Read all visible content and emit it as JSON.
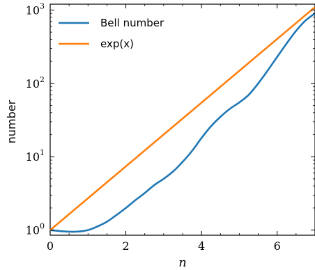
{
  "chart_data": {
    "type": "line",
    "xlabel": "n",
    "ylabel": "number",
    "xlim": [
      0,
      7
    ],
    "ylim_log10": [
      -0.07,
      3.08
    ],
    "yscale": "log",
    "x_ticks": [
      0,
      2,
      4,
      6
    ],
    "x_tick_labels": [
      "0",
      "2",
      "4",
      "6"
    ],
    "y_ticks": [
      1,
      10,
      100,
      1000
    ],
    "y_tick_labels": [
      {
        "base": "10",
        "exp": "0"
      },
      {
        "base": "10",
        "exp": "1"
      },
      {
        "base": "10",
        "exp": "2"
      },
      {
        "base": "10",
        "exp": "3"
      }
    ],
    "legend_position": "top-left",
    "grid": false,
    "series": [
      {
        "name": "Bell number",
        "color": "#1f77b4",
        "x": [
          0,
          0.25,
          0.5,
          0.75,
          1,
          1.25,
          1.5,
          1.75,
          2,
          2.25,
          2.5,
          2.75,
          3,
          3.25,
          3.5,
          3.75,
          4,
          4.25,
          4.5,
          4.75,
          5,
          5.25,
          5.5,
          5.75,
          6,
          6.25,
          6.5,
          6.75,
          7
        ],
        "y": [
          1,
          0.97,
          0.95,
          0.955,
          1.0,
          1.12,
          1.3,
          1.6,
          2.0,
          2.55,
          3.2,
          4.1,
          5.0,
          6.3,
          8.5,
          12,
          18,
          26,
          35,
          45,
          55,
          70,
          100,
          150,
          230,
          350,
          520,
          720,
          900
        ]
      },
      {
        "name": "exp(x)",
        "color": "#ff7f0e",
        "x": [
          0,
          7
        ],
        "y": [
          1,
          1096.6
        ]
      }
    ]
  }
}
